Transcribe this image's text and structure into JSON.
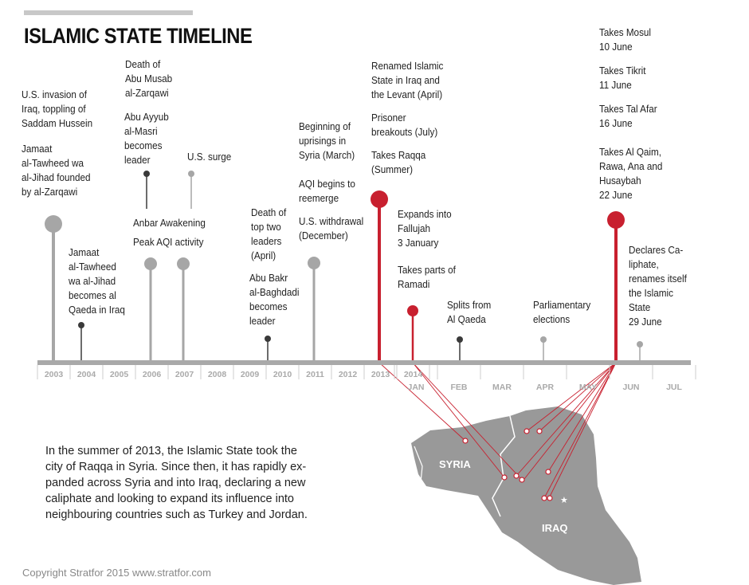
{
  "title": "ISLAMIC STATE TIMELINE",
  "colors": {
    "accent": "#c8202f",
    "gray": "#a6a6a6",
    "dark": "#3a3a3a",
    "map": "#999999"
  },
  "years": [
    "2003",
    "2004",
    "2005",
    "2006",
    "2007",
    "2008",
    "2009",
    "2010",
    "2011",
    "2012",
    "2013",
    "2014"
  ],
  "months": [
    "JAN",
    "FEB",
    "MAR",
    "APR",
    "MAY",
    "JUN",
    "JUL"
  ],
  "events": [
    {
      "lines": [
        "U.S. invasion of",
        "Iraq, toppling of",
        "Saddam Hussein"
      ]
    },
    {
      "lines": [
        "Jamaat",
        "al-Tawheed wa",
        "al-Jihad founded",
        "by al-Zarqawi"
      ]
    },
    {
      "lines": [
        "Jamaat",
        "al-Tawheed",
        "wa al-Jihad",
        "becomes al",
        "Qaeda in Iraq"
      ]
    },
    {
      "lines": [
        "Death of",
        "Abu Musab",
        "al-Zarqawi"
      ]
    },
    {
      "lines": [
        "Abu Ayyub",
        "al-Masri",
        "becomes",
        "leader"
      ]
    },
    {
      "lines": [
        "U.S. surge"
      ]
    },
    {
      "lines": [
        "Anbar Awakening"
      ]
    },
    {
      "lines": [
        "Peak AQI activity"
      ]
    },
    {
      "lines": [
        "Death of",
        "top two",
        "leaders",
        "(April)"
      ]
    },
    {
      "lines": [
        "Abu Bakr",
        "al-Baghdadi",
        "becomes",
        "leader"
      ]
    },
    {
      "lines": [
        "Beginning of",
        "uprisings in",
        "Syria (March)"
      ]
    },
    {
      "lines": [
        "AQI begins to",
        "reemerge"
      ]
    },
    {
      "lines": [
        "U.S. withdrawal",
        "(December)"
      ]
    },
    {
      "lines": [
        "Renamed Islamic",
        "State in Iraq and",
        "the Levant (April)"
      ]
    },
    {
      "lines": [
        "Prisoner",
        "breakouts (July)"
      ]
    },
    {
      "lines": [
        "Takes Raqqa",
        "(Summer)"
      ]
    },
    {
      "lines": [
        "Expands into",
        "Fallujah",
        "3 January"
      ]
    },
    {
      "lines": [
        "Takes parts of",
        "Ramadi"
      ]
    },
    {
      "lines": [
        "Splits from",
        "Al Qaeda"
      ]
    },
    {
      "lines": [
        "Parliamentary",
        "elections"
      ]
    },
    {
      "lines": [
        "Takes Mosul",
        "10 June"
      ]
    },
    {
      "lines": [
        "Takes Tikrit",
        "11 June"
      ]
    },
    {
      "lines": [
        "Takes Tal Afar",
        "16 June"
      ]
    },
    {
      "lines": [
        "Takes Al Qaim,",
        "Rawa, Ana and",
        "Husaybah",
        "22 June"
      ]
    },
    {
      "lines": [
        "Declares Ca-",
        "liphate,",
        "renames itself",
        "the Islamic",
        "State",
        "29 June"
      ]
    }
  ],
  "map_labels": {
    "syria": "SYRIA",
    "iraq": "IRAQ"
  },
  "paragraph": [
    "In the summer of 2013, the Islamic State took the",
    "city of Raqqa in Syria. Since then, it has rapidly ex-",
    "panded across Syria and into Iraq,  declaring a new",
    "caliphate and looking to expand its influence into",
    "neighbouring countries such as Turkey and Jordan."
  ],
  "copyright": "Copyright Stratfor 2015   www.stratfor.com"
}
